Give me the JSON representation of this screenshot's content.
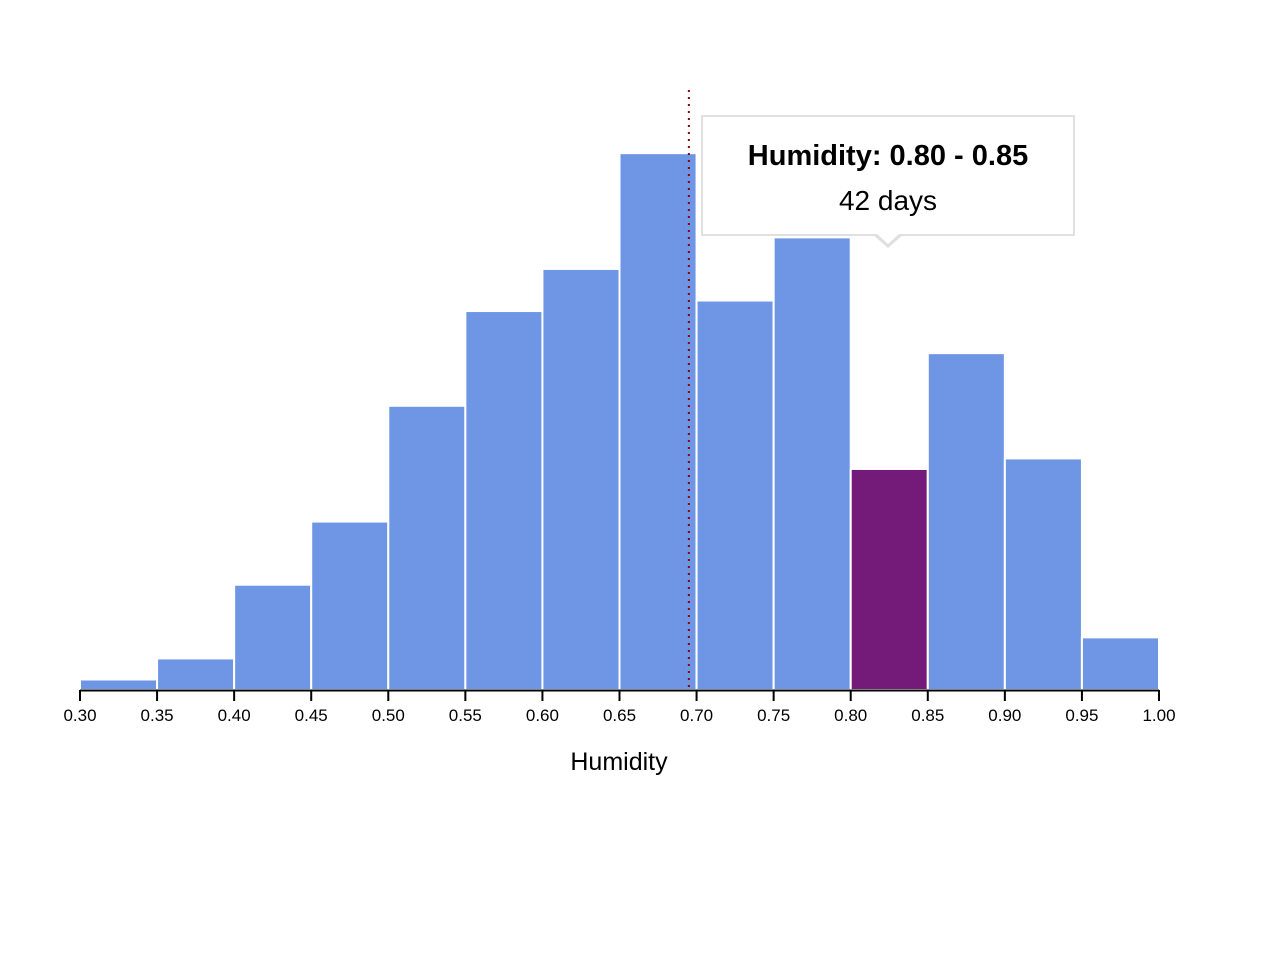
{
  "chart_data": {
    "type": "bar",
    "subtype": "histogram",
    "title": "",
    "xlabel": "Humidity",
    "ylabel": "",
    "x_ticks": [
      "0.30",
      "0.35",
      "0.40",
      "0.45",
      "0.50",
      "0.55",
      "0.60",
      "0.65",
      "0.70",
      "0.75",
      "0.80",
      "0.85",
      "0.90",
      "0.95",
      "1.00"
    ],
    "bins": [
      {
        "start": 0.3,
        "end": 0.35,
        "count": 2
      },
      {
        "start": 0.35,
        "end": 0.4,
        "count": 6
      },
      {
        "start": 0.4,
        "end": 0.45,
        "count": 20
      },
      {
        "start": 0.45,
        "end": 0.5,
        "count": 32
      },
      {
        "start": 0.5,
        "end": 0.55,
        "count": 54
      },
      {
        "start": 0.55,
        "end": 0.6,
        "count": 72
      },
      {
        "start": 0.6,
        "end": 0.65,
        "count": 80
      },
      {
        "start": 0.65,
        "end": 0.7,
        "count": 102
      },
      {
        "start": 0.7,
        "end": 0.75,
        "count": 74
      },
      {
        "start": 0.75,
        "end": 0.8,
        "count": 86
      },
      {
        "start": 0.8,
        "end": 0.85,
        "count": 42
      },
      {
        "start": 0.85,
        "end": 0.9,
        "count": 64
      },
      {
        "start": 0.9,
        "end": 0.95,
        "count": 44
      },
      {
        "start": 0.95,
        "end": 1.0,
        "count": 10
      }
    ],
    "xlim": [
      0.3,
      1.0
    ],
    "ylim": [
      0,
      114
    ],
    "grid": false,
    "highlighted_bin_index": 10,
    "mean_line_x": 0.695,
    "colors": {
      "bar": "#6f96e5",
      "highlight": "#741b79",
      "mean_line": "#8b0000",
      "axis": "#000000"
    }
  },
  "tooltip": {
    "title": "Humidity: 0.80 - 0.85",
    "value": "42 days"
  }
}
